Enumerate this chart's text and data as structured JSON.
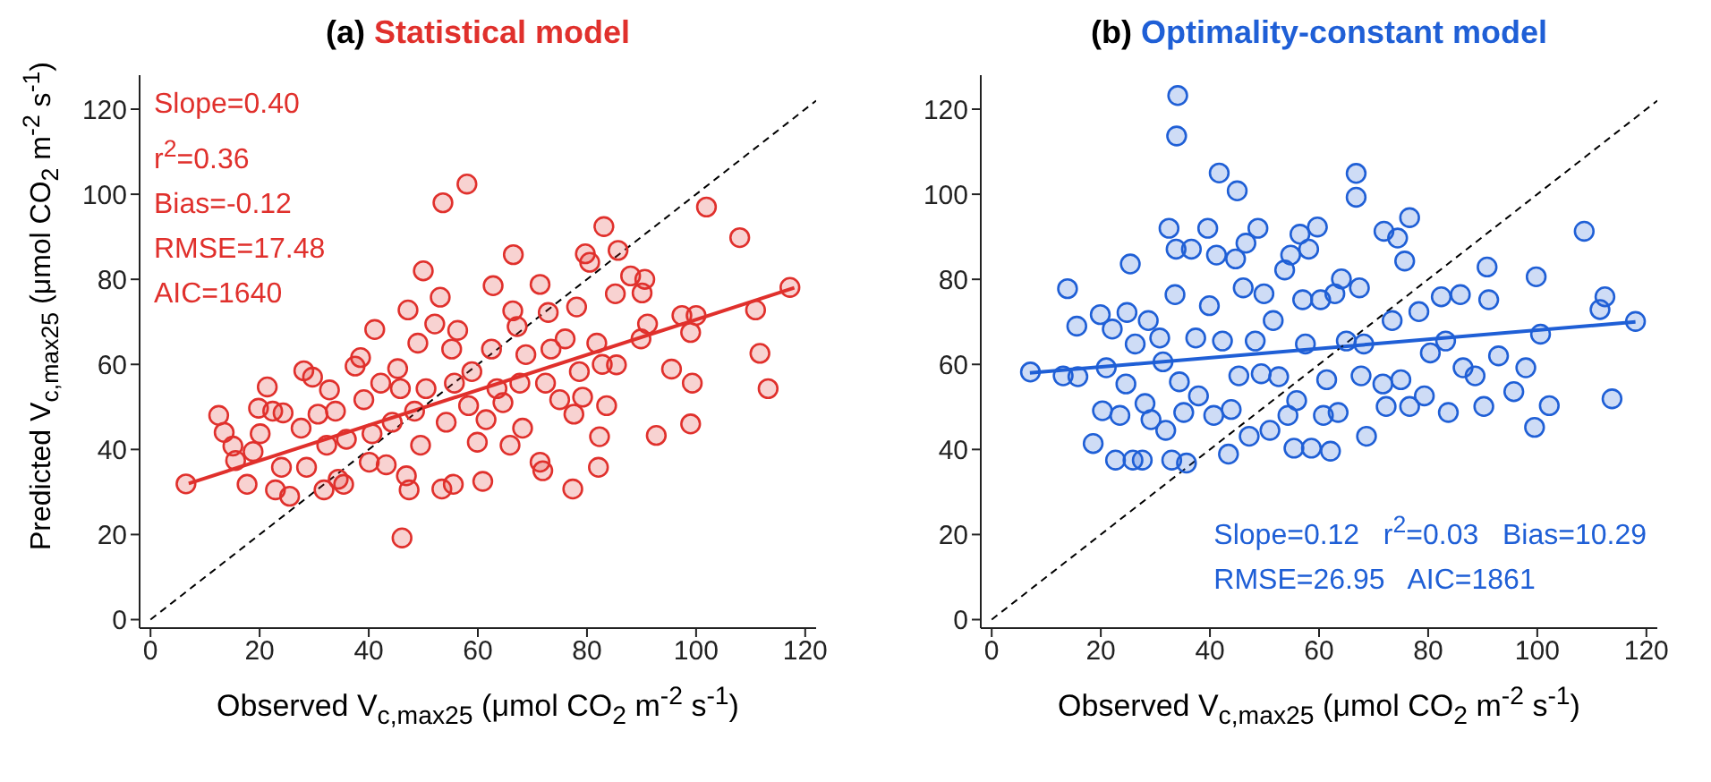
{
  "chart_data": [
    {
      "type": "scatter",
      "title": "(a) Statistical model",
      "xlabel": "Observed V$_{c,max25}$ (μmol CO$_{2}$ m$^{-2}$ s$^{-1}$)",
      "ylabel": "Predicted V$_{c,max25}$ (μmol CO$_{2}$ m$^{-2}$ s$^{-1}$)",
      "xlim": [
        -2,
        122
      ],
      "ylim": [
        -2,
        128
      ],
      "xticks": [
        0,
        20,
        40,
        60,
        80,
        100,
        120
      ],
      "yticks": [
        0,
        20,
        40,
        60,
        80,
        100,
        120
      ],
      "annotations": [
        "Slope=0.40",
        "r$^{2}$=0.36",
        "Bias=-0.12",
        "RMSE=17.48",
        "AIC=1640"
      ],
      "series": [
        {
          "marker": "circle",
          "color": "#e0302c",
          "x": [
            6.5,
            12.5,
            13.5,
            15.1,
            15.6,
            17.7,
            18.8,
            19.8,
            20.1,
            21.4,
            22.4,
            22.9,
            24.3,
            24,
            25.5,
            27.6,
            28.1,
            28.6,
            29.7,
            30.7,
            31.8,
            32.3,
            32.8,
            33.9,
            34.4,
            35.4,
            35.9,
            37.5,
            38.5,
            39.1,
            40.1,
            40.6,
            41.1,
            42.2,
            43.2,
            44.3,
            45.3,
            45.8,
            46.1,
            46.9,
            47.2,
            47.4,
            48.4,
            49,
            49.5,
            50,
            50.5,
            52.1,
            53.1,
            53.4,
            53.6,
            54.2,
            55.2,
            55.5,
            55.7,
            56.3,
            58,
            58.3,
            58.9,
            59.9,
            60.9,
            61.5,
            62.5,
            62.8,
            63.5,
            64.6,
            65.9,
            66.4,
            66.5,
            67.2,
            67.7,
            68.2,
            68.8,
            71.4,
            71.4,
            71.9,
            72.4,
            72.9,
            73.4,
            75,
            76,
            77.4,
            77.6,
            78.1,
            78.6,
            79.2,
            79.7,
            80.5,
            81.8,
            82.1,
            82.3,
            82.8,
            83.1,
            83.6,
            85.2,
            85.4,
            85.7,
            88,
            89.9,
            90.1,
            90.6,
            91.1,
            92.7,
            95.5,
            97.4,
            99,
            99.3,
            99,
            100,
            101.9,
            108,
            110.9,
            111.7,
            113.2,
            117.2
          ],
          "values": [
            31.9,
            48,
            44,
            40.8,
            37.4,
            31.8,
            39.5,
            49.7,
            43.7,
            54.7,
            49,
            30.5,
            48.6,
            35.8,
            29,
            45,
            58.5,
            35.8,
            57,
            48.3,
            30.5,
            41,
            54,
            49,
            33,
            31.8,
            42.4,
            59.6,
            61.6,
            51.7,
            37,
            43.7,
            68.2,
            55.6,
            36.4,
            46.4,
            59,
            54.3,
            19.2,
            33.8,
            72.8,
            30.5,
            49,
            65,
            41,
            82,
            54.3,
            69.5,
            75.8,
            30.7,
            98,
            46.4,
            63.6,
            31.8,
            55.6,
            68,
            102.4,
            50.3,
            58.3,
            41.7,
            32.5,
            47,
            63.6,
            78.5,
            54.3,
            51,
            41,
            72.6,
            85.8,
            68.9,
            55.6,
            45,
            62.3,
            78.8,
            37,
            35,
            55.6,
            72.2,
            63.6,
            51.7,
            66,
            30.7,
            48.3,
            73.5,
            58.3,
            52.3,
            86,
            84,
            65,
            35.8,
            43,
            60,
            92.4,
            50.3,
            76.6,
            59.9,
            86.8,
            80.8,
            66,
            76.8,
            80,
            69.5,
            43.3,
            58.9,
            71.5,
            67.5,
            55.6,
            46,
            71.5,
            97,
            89.8,
            72.8,
            62.6,
            54.3,
            78.1
          ]
        },
        {
          "type": "line",
          "marker": "none",
          "color": "#e0302c",
          "x": [
            7,
            118
          ],
          "values": [
            32,
            78
          ]
        },
        {
          "type": "line",
          "color": "#000000",
          "line_style": "dashed",
          "x": [
            0,
            122
          ],
          "values": [
            0,
            122
          ]
        }
      ]
    },
    {
      "type": "scatter",
      "title": "(b) Optimality-constant model",
      "xlabel": "Observed V$_{c,max25}$ (μmol CO$_{2}$ m$^{-2}$ s$^{-1}$)",
      "xlim": [
        -2,
        122
      ],
      "ylim": [
        -2,
        128
      ],
      "xticks": [
        0,
        20,
        40,
        60,
        80,
        100,
        120
      ],
      "yticks": [
        0,
        20,
        40,
        60,
        80,
        100,
        120
      ],
      "annotations": [
        "Slope=0.12   r$^{2}$=0.03   Bias=10.29",
        "RMSE=26.95   AIC=1861"
      ],
      "series": [
        {
          "marker": "circle",
          "color": "#1f5fd6",
          "x": [
            7.1,
            13.1,
            13.9,
            15.8,
            15.6,
            18.6,
            19.9,
            20.3,
            21,
            22.1,
            22.7,
            23.5,
            24.6,
            24.8,
            25.4,
            25.9,
            26.3,
            27.6,
            28.1,
            28.7,
            29.2,
            30.8,
            31.4,
            31.9,
            32.5,
            33,
            33.6,
            33.8,
            34.1,
            33.9,
            34.4,
            35.2,
            35.7,
            36.6,
            37.4,
            37.9,
            39.6,
            39.9,
            40.7,
            41.2,
            41.7,
            42.3,
            43.4,
            43.9,
            44.7,
            45,
            45.3,
            46.1,
            46.6,
            47.2,
            48.3,
            48.8,
            49.4,
            49.9,
            51,
            51.6,
            52.6,
            53.7,
            54.3,
            54.8,
            55.4,
            55.9,
            56.5,
            57,
            57.5,
            58.1,
            58.6,
            59.7,
            60.3,
            60.8,
            61.4,
            62.1,
            62.9,
            63.5,
            64.1,
            65,
            66.8,
            66.8,
            67.4,
            67.7,
            68.2,
            68.7,
            71.7,
            71.9,
            72.3,
            73.4,
            74.4,
            75,
            75.7,
            76.6,
            76.6,
            78.3,
            79.3,
            80.4,
            82.4,
            83.2,
            83.7,
            85.9,
            86.4,
            88.6,
            90.2,
            90.8,
            91.1,
            92.9,
            95.7,
            97.9,
            99.5,
            99.8,
            100.6,
            102.2,
            108.6,
            111.5,
            112.4,
            113.7,
            118
          ],
          "values": [
            58.2,
            57.3,
            77.8,
            57.1,
            69,
            41.4,
            71.7,
            49.1,
            59.2,
            68.3,
            37.5,
            48,
            55.4,
            72.2,
            83.6,
            37.5,
            64.8,
            37.5,
            50.8,
            70.3,
            47,
            66.2,
            60.6,
            44.5,
            92,
            37.5,
            76.4,
            87.1,
            123.2,
            113.7,
            55.9,
            48.7,
            36.8,
            87.1,
            66.2,
            52.6,
            92,
            73.8,
            48,
            85.7,
            105,
            65.5,
            38.9,
            49.4,
            84.8,
            100.8,
            57.3,
            78,
            88.5,
            43.1,
            65.5,
            92,
            57.8,
            76.6,
            44.5,
            70.3,
            57.1,
            82.2,
            48,
            85.7,
            40.3,
            51.5,
            90.6,
            75.2,
            64.8,
            87.1,
            40.3,
            92.3,
            75.2,
            48,
            56.4,
            39.6,
            76.6,
            48.7,
            80.1,
            65.5,
            104.9,
            99.3,
            78,
            57.3,
            64.8,
            43.1,
            55.4,
            91.3,
            50.1,
            70.3,
            89.7,
            56.4,
            84.3,
            50.1,
            94.5,
            72.4,
            52.6,
            62.7,
            75.9,
            65.5,
            48.7,
            76.4,
            59.2,
            57.3,
            50.1,
            82.9,
            75.2,
            62,
            53.6,
            59.2,
            45.2,
            80.6,
            67.1,
            50.3,
            91.3,
            72.9,
            75.9,
            51.9,
            70.1
          ]
        },
        {
          "type": "line",
          "marker": "none",
          "color": "#1f5fd6",
          "x": [
            7,
            118
          ],
          "values": [
            58,
            70
          ]
        },
        {
          "type": "line",
          "color": "#000000",
          "line_style": "dashed",
          "x": [
            0,
            122
          ],
          "values": [
            0,
            122
          ]
        }
      ]
    }
  ]
}
